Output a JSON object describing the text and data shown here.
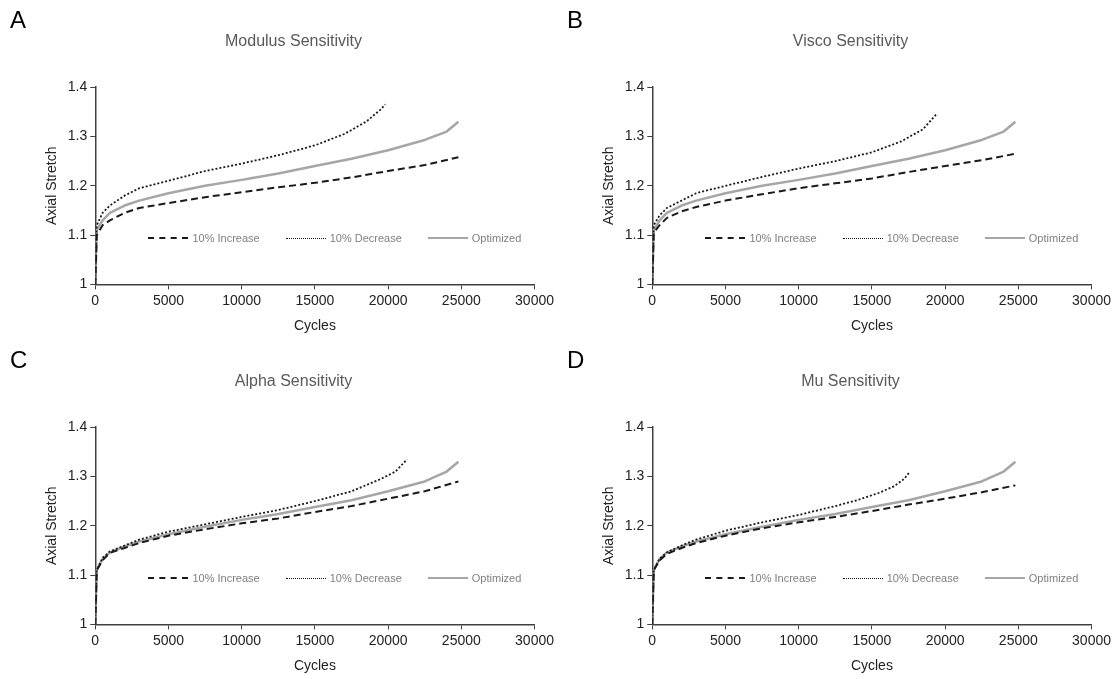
{
  "chart_data": [
    {
      "type": "line",
      "title": "Modulus Sensitivity",
      "xlabel": "Cycles",
      "ylabel": "Axial Stretch",
      "annotations": [
        "A"
      ],
      "xlim": [
        0,
        30000
      ],
      "xticks": [
        0,
        5000,
        10000,
        15000,
        20000,
        25000,
        30000
      ],
      "ylim": [
        1,
        1.4
      ],
      "yticks": [
        1,
        1.1,
        1.2,
        1.3,
        1.4
      ],
      "grid": false,
      "legend": "bottom",
      "marker": "none",
      "series": [
        {
          "name": "10% Increase",
          "color": "#1a1a1a",
          "line_style": "dashed",
          "x": [
            0,
            100,
            500,
            1000,
            2000,
            3000,
            5000,
            7500,
            10000,
            12500,
            15000,
            17500,
            20000,
            22500,
            24800
          ],
          "values": [
            1.0,
            1.1,
            1.12,
            1.13,
            1.145,
            1.155,
            1.165,
            1.177,
            1.187,
            1.197,
            1.206,
            1.217,
            1.23,
            1.242,
            1.258
          ]
        },
        {
          "name": "10% Decrease",
          "color": "#1a1a1a",
          "line_style": "dotted",
          "x": [
            0,
            100,
            500,
            1000,
            2000,
            3000,
            5000,
            7500,
            10000,
            12500,
            15000,
            17000,
            18500,
            19500,
            19800
          ],
          "values": [
            1.0,
            1.12,
            1.145,
            1.16,
            1.18,
            1.195,
            1.21,
            1.23,
            1.245,
            1.262,
            1.282,
            1.305,
            1.33,
            1.355,
            1.365
          ]
        },
        {
          "name": "Optimized",
          "color": "#a6a6a6",
          "line_style": "solid",
          "x": [
            0,
            100,
            500,
            1000,
            2000,
            3000,
            5000,
            7500,
            10000,
            12500,
            15000,
            17500,
            20000,
            22500,
            24000,
            24800
          ],
          "values": [
            1.0,
            1.11,
            1.13,
            1.145,
            1.16,
            1.17,
            1.185,
            1.2,
            1.212,
            1.225,
            1.24,
            1.255,
            1.272,
            1.293,
            1.31,
            1.33
          ]
        }
      ]
    },
    {
      "type": "line",
      "title": "Visco Sensitivity",
      "xlabel": "Cycles",
      "ylabel": "Axial Stretch",
      "annotations": [
        "B"
      ],
      "xlim": [
        0,
        30000
      ],
      "xticks": [
        0,
        5000,
        10000,
        15000,
        20000,
        25000,
        30000
      ],
      "ylim": [
        1,
        1.4
      ],
      "yticks": [
        1,
        1.1,
        1.2,
        1.3,
        1.4
      ],
      "grid": false,
      "legend": "bottom",
      "marker": "none",
      "series": [
        {
          "name": "10% Increase",
          "color": "#1a1a1a",
          "line_style": "dashed",
          "x": [
            0,
            100,
            500,
            1000,
            2000,
            3000,
            5000,
            7500,
            10000,
            12500,
            15000,
            17500,
            20000,
            22500,
            24800
          ],
          "values": [
            1.0,
            1.105,
            1.12,
            1.135,
            1.148,
            1.157,
            1.17,
            1.183,
            1.195,
            1.205,
            1.215,
            1.228,
            1.24,
            1.252,
            1.265
          ]
        },
        {
          "name": "10% Decrease",
          "color": "#1a1a1a",
          "line_style": "dotted",
          "x": [
            0,
            100,
            500,
            1000,
            2000,
            3000,
            5000,
            7500,
            10000,
            12500,
            15000,
            17000,
            18500,
            19400
          ],
          "values": [
            1.0,
            1.12,
            1.14,
            1.155,
            1.17,
            1.185,
            1.2,
            1.218,
            1.235,
            1.25,
            1.268,
            1.29,
            1.315,
            1.345
          ]
        },
        {
          "name": "Optimized",
          "color": "#a6a6a6",
          "line_style": "solid",
          "x": [
            0,
            100,
            500,
            1000,
            2000,
            3000,
            5000,
            7500,
            10000,
            12500,
            15000,
            17500,
            20000,
            22500,
            24000,
            24800
          ],
          "values": [
            1.0,
            1.11,
            1.13,
            1.145,
            1.16,
            1.17,
            1.185,
            1.2,
            1.212,
            1.225,
            1.24,
            1.255,
            1.272,
            1.293,
            1.31,
            1.33
          ]
        }
      ]
    },
    {
      "type": "line",
      "title": "Alpha Sensitivity",
      "xlabel": "Cycles",
      "ylabel": "Axial Stretch",
      "annotations": [
        "C"
      ],
      "xlim": [
        0,
        30000
      ],
      "xticks": [
        0,
        5000,
        10000,
        15000,
        20000,
        25000,
        30000
      ],
      "ylim": [
        1,
        1.4
      ],
      "yticks": [
        1,
        1.1,
        1.2,
        1.3,
        1.4
      ],
      "grid": false,
      "legend": "bottom",
      "marker": "none",
      "series": [
        {
          "name": "10% Increase",
          "color": "#1a1a1a",
          "line_style": "dashed",
          "x": [
            0,
            100,
            500,
            1000,
            2000,
            3000,
            5000,
            7500,
            10000,
            12500,
            15000,
            17500,
            20000,
            22500,
            24800
          ],
          "values": [
            1.0,
            1.11,
            1.13,
            1.145,
            1.155,
            1.165,
            1.18,
            1.193,
            1.205,
            1.215,
            1.228,
            1.24,
            1.255,
            1.27,
            1.29
          ]
        },
        {
          "name": "10% Decrease",
          "color": "#1a1a1a",
          "line_style": "dotted",
          "x": [
            0,
            100,
            500,
            1000,
            2000,
            3000,
            5000,
            7500,
            10000,
            12500,
            15000,
            17500,
            19500,
            20500,
            21300
          ],
          "values": [
            1.0,
            1.11,
            1.135,
            1.148,
            1.16,
            1.172,
            1.188,
            1.203,
            1.218,
            1.232,
            1.25,
            1.27,
            1.295,
            1.31,
            1.335
          ]
        },
        {
          "name": "Optimized",
          "color": "#a6a6a6",
          "line_style": "solid",
          "x": [
            0,
            100,
            500,
            1000,
            2000,
            3000,
            5000,
            7500,
            10000,
            12500,
            15000,
            17500,
            20000,
            22500,
            24000,
            24800
          ],
          "values": [
            1.0,
            1.11,
            1.133,
            1.146,
            1.158,
            1.168,
            1.183,
            1.198,
            1.212,
            1.224,
            1.238,
            1.252,
            1.27,
            1.29,
            1.31,
            1.33
          ]
        }
      ]
    },
    {
      "type": "line",
      "title": "Mu Sensitivity",
      "xlabel": "Cycles",
      "ylabel": "Axial Stretch",
      "annotations": [
        "D"
      ],
      "xlim": [
        0,
        30000
      ],
      "xticks": [
        0,
        5000,
        10000,
        15000,
        20000,
        25000,
        30000
      ],
      "ylim": [
        1,
        1.4
      ],
      "yticks": [
        1,
        1.1,
        1.2,
        1.3,
        1.4
      ],
      "grid": false,
      "legend": "bottom",
      "marker": "none",
      "series": [
        {
          "name": "10% Increase",
          "color": "#1a1a1a",
          "line_style": "dashed",
          "x": [
            0,
            100,
            500,
            1000,
            2000,
            3000,
            5000,
            7500,
            10000,
            12500,
            15000,
            17500,
            20000,
            22500,
            24800
          ],
          "values": [
            1.0,
            1.11,
            1.13,
            1.143,
            1.155,
            1.165,
            1.18,
            1.195,
            1.207,
            1.218,
            1.23,
            1.243,
            1.255,
            1.268,
            1.282
          ]
        },
        {
          "name": "10% Decrease",
          "color": "#1a1a1a",
          "line_style": "dotted",
          "x": [
            0,
            100,
            500,
            1000,
            2000,
            3000,
            5000,
            7500,
            10000,
            12500,
            14000,
            15500,
            16500,
            17200,
            17600
          ],
          "values": [
            1.0,
            1.11,
            1.133,
            1.146,
            1.16,
            1.172,
            1.19,
            1.207,
            1.222,
            1.24,
            1.252,
            1.267,
            1.28,
            1.295,
            1.31
          ]
        },
        {
          "name": "Optimized",
          "color": "#a6a6a6",
          "line_style": "solid",
          "x": [
            0,
            100,
            500,
            1000,
            2000,
            3000,
            5000,
            7500,
            10000,
            12500,
            15000,
            17500,
            20000,
            22500,
            24000,
            24800
          ],
          "values": [
            1.0,
            1.11,
            1.133,
            1.146,
            1.158,
            1.168,
            1.183,
            1.198,
            1.212,
            1.224,
            1.238,
            1.252,
            1.27,
            1.29,
            1.31,
            1.33
          ]
        }
      ]
    }
  ]
}
